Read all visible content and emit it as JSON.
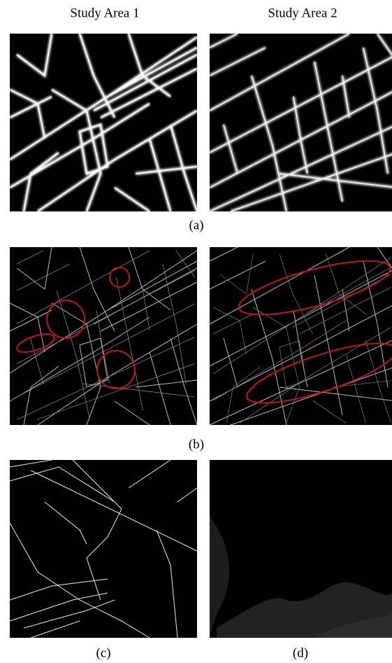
{
  "header": {
    "columns": [
      "Study Area 1",
      "Study Area 2"
    ]
  },
  "captions": [
    "(a)",
    "(b)",
    "(c)",
    "(d)"
  ]
}
